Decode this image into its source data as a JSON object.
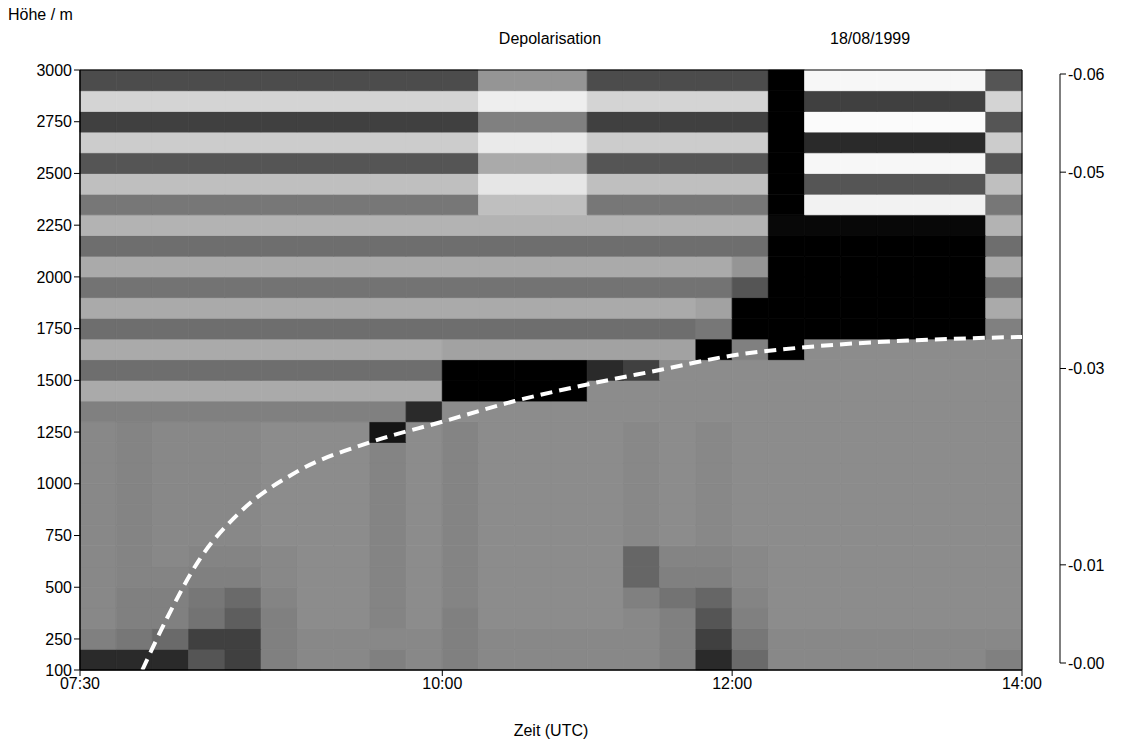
{
  "chart_data": {
    "type": "heatmap",
    "title": "Depolarisation",
    "subtitle": "18/08/1999",
    "x_label": "Zeit (UTC)",
    "y_label": "Höhe / m",
    "xlim": [
      7.5,
      14
    ],
    "xticks": [
      {
        "value": 7.5,
        "label": "07:30"
      },
      {
        "value": 10,
        "label": "10:00"
      },
      {
        "value": 12,
        "label": "12:00"
      },
      {
        "value": 14,
        "label": "14:00"
      }
    ],
    "ylim": [
      100,
      3000
    ],
    "yticks": [
      100,
      250,
      500,
      750,
      1000,
      1250,
      1500,
      1750,
      2000,
      2250,
      2500,
      2750,
      3000
    ],
    "x_edges": [
      7.5,
      7.75,
      8,
      8.25,
      8.5,
      8.75,
      9,
      9.25,
      9.5,
      9.75,
      10,
      10.25,
      10.5,
      10.75,
      11,
      11.25,
      11.5,
      11.75,
      12,
      12.25,
      12.5,
      12.75,
      13,
      13.25,
      13.5,
      13.75,
      14
    ],
    "y_edges": [
      100,
      200,
      300,
      400,
      500,
      600,
      700,
      800,
      900,
      1000,
      1100,
      1200,
      1300,
      1400,
      1500,
      1600,
      1700,
      1800,
      1900,
      2000,
      2100,
      2200,
      2300,
      2400,
      2500,
      2600,
      2700,
      2800,
      2900,
      3000
    ],
    "cells": [
      [
        -0.05,
        -0.05,
        -0.05,
        -0.04,
        -0.045,
        -0.03,
        -0.028,
        -0.028,
        -0.03,
        -0.028,
        -0.03,
        -0.028,
        -0.028,
        -0.028,
        -0.028,
        -0.028,
        -0.03,
        -0.05,
        -0.035,
        -0.028,
        -0.028,
        -0.028,
        -0.028,
        -0.028,
        -0.028,
        -0.03
      ],
      [
        -0.03,
        -0.032,
        -0.035,
        -0.045,
        -0.045,
        -0.03,
        -0.028,
        -0.028,
        -0.028,
        -0.028,
        -0.03,
        -0.028,
        -0.028,
        -0.028,
        -0.028,
        -0.028,
        -0.03,
        -0.045,
        -0.032,
        -0.028,
        -0.028,
        -0.028,
        -0.028,
        -0.028,
        -0.028,
        -0.028
      ],
      [
        -0.028,
        -0.03,
        -0.03,
        -0.033,
        -0.038,
        -0.03,
        -0.027,
        -0.027,
        -0.029,
        -0.027,
        -0.03,
        -0.027,
        -0.027,
        -0.027,
        -0.027,
        -0.028,
        -0.03,
        -0.04,
        -0.03,
        -0.027,
        -0.027,
        -0.027,
        -0.027,
        -0.027,
        -0.027,
        -0.027
      ],
      [
        -0.028,
        -0.03,
        -0.03,
        -0.032,
        -0.035,
        -0.029,
        -0.027,
        -0.027,
        -0.029,
        -0.027,
        -0.029,
        -0.027,
        -0.027,
        -0.027,
        -0.027,
        -0.03,
        -0.033,
        -0.036,
        -0.029,
        -0.027,
        -0.027,
        -0.027,
        -0.027,
        -0.027,
        -0.027,
        -0.027
      ],
      [
        -0.028,
        -0.029,
        -0.029,
        -0.03,
        -0.03,
        -0.028,
        -0.027,
        -0.027,
        -0.029,
        -0.027,
        -0.029,
        -0.027,
        -0.027,
        -0.027,
        -0.027,
        -0.036,
        -0.03,
        -0.03,
        -0.028,
        -0.027,
        -0.027,
        -0.027,
        -0.027,
        -0.027,
        -0.027,
        -0.027
      ],
      [
        -0.028,
        -0.029,
        -0.028,
        -0.029,
        -0.029,
        -0.028,
        -0.027,
        -0.027,
        -0.029,
        -0.027,
        -0.029,
        -0.027,
        -0.027,
        -0.027,
        -0.027,
        -0.036,
        -0.029,
        -0.029,
        -0.028,
        -0.027,
        -0.027,
        -0.027,
        -0.027,
        -0.027,
        -0.027,
        -0.027
      ],
      [
        -0.028,
        -0.029,
        -0.028,
        -0.028,
        -0.028,
        -0.027,
        -0.027,
        -0.027,
        -0.029,
        -0.027,
        -0.029,
        -0.027,
        -0.027,
        -0.027,
        -0.027,
        -0.028,
        -0.027,
        -0.028,
        -0.027,
        -0.027,
        -0.027,
        -0.027,
        -0.027,
        -0.027,
        -0.027,
        -0.027
      ],
      [
        -0.028,
        -0.029,
        -0.028,
        -0.028,
        -0.028,
        -0.027,
        -0.027,
        -0.027,
        -0.029,
        -0.027,
        -0.029,
        -0.027,
        -0.027,
        -0.027,
        -0.027,
        -0.028,
        -0.027,
        -0.028,
        -0.027,
        -0.027,
        -0.027,
        -0.027,
        -0.027,
        -0.027,
        -0.027,
        -0.027
      ],
      [
        -0.028,
        -0.029,
        -0.028,
        -0.028,
        -0.028,
        -0.027,
        -0.027,
        -0.027,
        -0.029,
        -0.027,
        -0.029,
        -0.027,
        -0.027,
        -0.027,
        -0.027,
        -0.028,
        -0.027,
        -0.028,
        -0.027,
        -0.027,
        -0.027,
        -0.027,
        -0.027,
        -0.027,
        -0.027,
        -0.027
      ],
      [
        -0.028,
        -0.029,
        -0.028,
        -0.028,
        -0.028,
        -0.027,
        -0.027,
        -0.027,
        -0.029,
        -0.027,
        -0.029,
        -0.027,
        -0.027,
        -0.027,
        -0.027,
        -0.028,
        -0.027,
        -0.028,
        -0.027,
        -0.027,
        -0.027,
        -0.027,
        -0.027,
        -0.027,
        -0.027,
        -0.027
      ],
      [
        -0.028,
        -0.029,
        -0.028,
        -0.028,
        -0.028,
        -0.027,
        -0.027,
        -0.027,
        -0.029,
        -0.027,
        -0.029,
        -0.027,
        -0.027,
        -0.027,
        -0.027,
        -0.028,
        -0.027,
        -0.028,
        -0.027,
        -0.027,
        -0.027,
        -0.027,
        -0.027,
        -0.027,
        -0.027,
        -0.027
      ],
      [
        -0.028,
        -0.029,
        -0.028,
        -0.028,
        -0.028,
        -0.027,
        -0.027,
        -0.027,
        -0.055,
        -0.027,
        -0.029,
        -0.027,
        -0.027,
        -0.027,
        -0.027,
        -0.028,
        -0.027,
        -0.028,
        -0.027,
        -0.027,
        -0.027,
        -0.027,
        -0.027,
        -0.027,
        -0.027,
        -0.027
      ],
      [
        -0.03,
        -0.03,
        -0.03,
        -0.03,
        -0.03,
        -0.03,
        -0.03,
        -0.03,
        -0.03,
        -0.05,
        -0.027,
        -0.027,
        -0.027,
        -0.027,
        -0.027,
        -0.027,
        -0.027,
        -0.027,
        -0.027,
        -0.027,
        -0.027,
        -0.027,
        -0.027,
        -0.027,
        -0.027,
        -0.027
      ],
      [
        -0.02,
        -0.02,
        -0.02,
        -0.02,
        -0.02,
        -0.02,
        -0.02,
        -0.02,
        -0.02,
        -0.02,
        -0.06,
        -0.06,
        -0.06,
        -0.06,
        -0.027,
        -0.027,
        -0.027,
        -0.027,
        -0.027,
        -0.027,
        -0.027,
        -0.027,
        -0.027,
        -0.027,
        -0.027,
        -0.027
      ],
      [
        -0.034,
        -0.034,
        -0.034,
        -0.034,
        -0.034,
        -0.034,
        -0.034,
        -0.034,
        -0.034,
        -0.034,
        -0.06,
        -0.06,
        -0.06,
        -0.06,
        -0.05,
        -0.045,
        -0.027,
        -0.027,
        -0.027,
        -0.027,
        -0.027,
        -0.027,
        -0.027,
        -0.027,
        -0.027,
        -0.027
      ],
      [
        -0.02,
        -0.02,
        -0.02,
        -0.02,
        -0.02,
        -0.02,
        -0.02,
        -0.02,
        -0.02,
        -0.02,
        -0.022,
        -0.022,
        -0.022,
        -0.022,
        -0.022,
        -0.022,
        -0.022,
        -0.06,
        -0.03,
        -0.06,
        -0.027,
        -0.027,
        -0.027,
        -0.027,
        -0.027,
        -0.027
      ],
      [
        -0.034,
        -0.034,
        -0.034,
        -0.034,
        -0.034,
        -0.034,
        -0.034,
        -0.034,
        -0.034,
        -0.034,
        -0.034,
        -0.034,
        -0.034,
        -0.034,
        -0.034,
        -0.034,
        -0.034,
        -0.032,
        -0.06,
        -0.06,
        -0.06,
        -0.06,
        -0.06,
        -0.06,
        -0.06,
        -0.03
      ],
      [
        -0.02,
        -0.02,
        -0.02,
        -0.02,
        -0.02,
        -0.02,
        -0.02,
        -0.02,
        -0.02,
        -0.02,
        -0.02,
        -0.02,
        -0.02,
        -0.02,
        -0.02,
        -0.02,
        -0.02,
        -0.022,
        -0.06,
        -0.06,
        -0.06,
        -0.06,
        -0.06,
        -0.06,
        -0.06,
        -0.02
      ],
      [
        -0.033,
        -0.033,
        -0.033,
        -0.033,
        -0.033,
        -0.033,
        -0.033,
        -0.033,
        -0.033,
        -0.033,
        -0.033,
        -0.033,
        -0.033,
        -0.033,
        -0.033,
        -0.033,
        -0.033,
        -0.033,
        -0.04,
        -0.06,
        -0.06,
        -0.06,
        -0.06,
        -0.06,
        -0.06,
        -0.033
      ],
      [
        -0.02,
        -0.02,
        -0.02,
        -0.02,
        -0.02,
        -0.02,
        -0.02,
        -0.02,
        -0.02,
        -0.02,
        -0.02,
        -0.02,
        -0.02,
        -0.02,
        -0.02,
        -0.02,
        -0.02,
        -0.02,
        -0.025,
        -0.06,
        -0.06,
        -0.06,
        -0.06,
        -0.06,
        -0.06,
        -0.02
      ],
      [
        -0.034,
        -0.034,
        -0.034,
        -0.034,
        -0.034,
        -0.034,
        -0.034,
        -0.034,
        -0.034,
        -0.034,
        -0.034,
        -0.034,
        -0.034,
        -0.034,
        -0.034,
        -0.034,
        -0.034,
        -0.034,
        -0.034,
        -0.06,
        -0.06,
        -0.06,
        -0.06,
        -0.06,
        -0.06,
        -0.034
      ],
      [
        -0.018,
        -0.018,
        -0.018,
        -0.018,
        -0.018,
        -0.018,
        -0.018,
        -0.018,
        -0.018,
        -0.018,
        -0.018,
        -0.018,
        -0.018,
        -0.018,
        -0.018,
        -0.018,
        -0.018,
        -0.018,
        -0.018,
        -0.058,
        -0.058,
        -0.058,
        -0.058,
        -0.058,
        -0.058,
        -0.018
      ],
      [
        -0.032,
        -0.032,
        -0.032,
        -0.032,
        -0.032,
        -0.032,
        -0.032,
        -0.032,
        -0.032,
        -0.032,
        -0.032,
        -0.015,
        -0.015,
        -0.015,
        -0.032,
        -0.032,
        -0.032,
        -0.032,
        -0.032,
        -0.06,
        -0.003,
        -0.003,
        -0.003,
        -0.003,
        -0.003,
        -0.032
      ],
      [
        -0.015,
        -0.015,
        -0.015,
        -0.015,
        -0.015,
        -0.015,
        -0.015,
        -0.015,
        -0.015,
        -0.015,
        -0.015,
        -0.006,
        -0.006,
        -0.006,
        -0.015,
        -0.015,
        -0.015,
        -0.015,
        -0.015,
        -0.06,
        -0.04,
        -0.04,
        -0.04,
        -0.04,
        -0.04,
        -0.015
      ],
      [
        -0.04,
        -0.04,
        -0.04,
        -0.04,
        -0.04,
        -0.04,
        -0.04,
        -0.04,
        -0.04,
        -0.04,
        -0.04,
        -0.02,
        -0.02,
        -0.02,
        -0.04,
        -0.04,
        -0.04,
        -0.04,
        -0.04,
        -0.06,
        -0.002,
        -0.002,
        -0.002,
        -0.002,
        -0.002,
        -0.04
      ],
      [
        -0.012,
        -0.012,
        -0.012,
        -0.012,
        -0.012,
        -0.012,
        -0.012,
        -0.012,
        -0.012,
        -0.012,
        -0.012,
        -0.005,
        -0.005,
        -0.005,
        -0.012,
        -0.012,
        -0.012,
        -0.012,
        -0.012,
        -0.06,
        -0.05,
        -0.05,
        -0.05,
        -0.05,
        -0.05,
        -0.012
      ],
      [
        -0.045,
        -0.045,
        -0.045,
        -0.045,
        -0.045,
        -0.045,
        -0.045,
        -0.045,
        -0.045,
        -0.045,
        -0.045,
        -0.03,
        -0.03,
        -0.03,
        -0.045,
        -0.045,
        -0.045,
        -0.045,
        -0.045,
        -0.06,
        -0.001,
        -0.001,
        -0.001,
        -0.001,
        -0.001,
        -0.04
      ],
      [
        -0.01,
        -0.01,
        -0.01,
        -0.01,
        -0.01,
        -0.01,
        -0.01,
        -0.01,
        -0.01,
        -0.01,
        -0.01,
        -0.004,
        -0.004,
        -0.004,
        -0.01,
        -0.01,
        -0.01,
        -0.01,
        -0.01,
        -0.06,
        -0.045,
        -0.045,
        -0.045,
        -0.045,
        -0.045,
        -0.01
      ],
      [
        -0.042,
        -0.042,
        -0.042,
        -0.042,
        -0.042,
        -0.042,
        -0.042,
        -0.042,
        -0.042,
        -0.042,
        -0.042,
        -0.025,
        -0.025,
        -0.025,
        -0.042,
        -0.042,
        -0.042,
        -0.042,
        -0.042,
        -0.06,
        -0.002,
        -0.002,
        -0.002,
        -0.002,
        -0.002,
        -0.04
      ]
    ],
    "colorbar": {
      "lim": [
        -0.06,
        0
      ],
      "ticks": [
        -0.06,
        -0.05,
        -0.03,
        -0.01,
        {
          "value": 0,
          "label": "-0.00"
        }
      ]
    },
    "series": [
      {
        "type": "line",
        "color": "#ffffff",
        "line_style": "dashed",
        "x": [
          7.93,
          8.1,
          8.33,
          8.6,
          9.0,
          9.5,
          10.0,
          10.5,
          11.0,
          11.5,
          12.0,
          12.5,
          13.0,
          13.5,
          14.0
        ],
        "values": [
          100,
          350,
          640,
          860,
          1060,
          1200,
          1300,
          1400,
          1480,
          1550,
          1620,
          1660,
          1685,
          1700,
          1710
        ]
      }
    ]
  }
}
